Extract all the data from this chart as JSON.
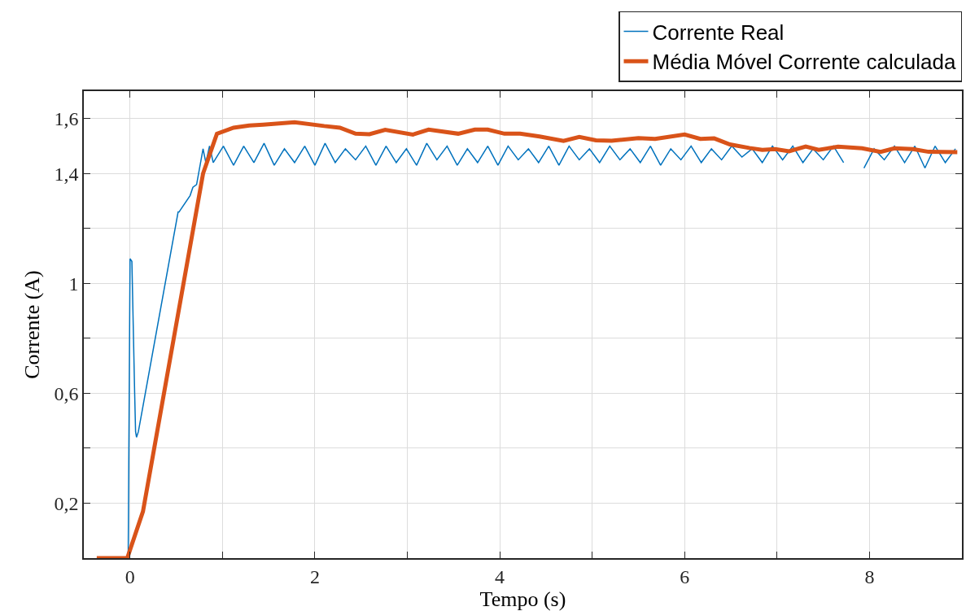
{
  "chart_data": {
    "type": "line",
    "xlabel": "Tempo (s)",
    "ylabel": "Corrente (A)",
    "xlim": [
      -0.5,
      9
    ],
    "ylim": [
      0,
      1.7
    ],
    "xticks": [
      0,
      {
        "value": 1,
        "label": null
      },
      2,
      {
        "value": 3,
        "label": null
      },
      4,
      {
        "value": 5,
        "label": null
      },
      6,
      {
        "value": 7,
        "label": null
      },
      8
    ],
    "yticks": [
      {
        "value": 0.2,
        "label": "0,2"
      },
      {
        "value": 0.4,
        "label": null
      },
      {
        "value": 0.6,
        "label": "0,6"
      },
      {
        "value": 0.8,
        "label": null
      },
      1,
      {
        "value": 1.2,
        "label": null
      },
      {
        "value": 1.4,
        "label": "1,4"
      },
      {
        "value": 1.6,
        "label": "1,6"
      }
    ],
    "grid": true,
    "legend": "top right",
    "marker": "none",
    "line_style": "solid",
    "series": [
      {
        "name": "Corrente Real",
        "color": "#0072bd",
        "x": [
          -0.36,
          -0.02,
          0.0,
          0.02,
          0.05,
          0.06,
          0.07,
          0.09,
          0.52,
          0.53,
          0.65,
          0.68,
          0.72,
          0.79,
          0.82,
          0.86,
          0.9,
          1.01,
          1.12,
          1.23,
          1.34,
          1.45,
          1.56,
          1.67,
          1.78,
          1.89,
          2.0,
          2.11,
          2.22,
          2.33,
          2.44,
          2.55,
          2.66,
          2.77,
          2.88,
          2.99,
          3.1,
          3.21,
          3.32,
          3.43,
          3.54,
          3.65,
          3.76,
          3.87,
          3.98,
          4.09,
          4.2,
          4.31,
          4.42,
          4.53,
          4.64,
          4.75,
          4.86,
          4.97,
          5.08,
          5.19,
          5.3,
          5.41,
          5.52,
          5.63,
          5.74,
          5.85,
          5.96,
          6.07,
          6.18,
          6.29,
          6.4,
          6.51,
          6.62,
          6.73,
          6.84,
          6.95,
          7.06,
          7.17,
          7.28,
          7.39,
          7.5,
          7.61,
          7.72,
          7.83,
          7.94,
          8.05,
          8.16,
          8.27,
          8.38,
          8.49,
          8.6,
          8.71,
          8.82,
          8.93
        ],
        "values": [
          0,
          0,
          1.09,
          1.08,
          0.6,
          0.46,
          0.44,
          0.46,
          1.26,
          1.26,
          1.32,
          1.35,
          1.36,
          1.49,
          1.44,
          1.5,
          1.44,
          1.5,
          1.43,
          1.5,
          1.44,
          1.51,
          1.43,
          1.49,
          1.44,
          1.5,
          1.43,
          1.51,
          1.44,
          1.49,
          1.45,
          1.5,
          1.43,
          1.5,
          1.44,
          1.49,
          1.43,
          1.51,
          1.45,
          1.5,
          1.43,
          1.49,
          1.44,
          1.5,
          1.43,
          1.5,
          1.45,
          1.49,
          1.44,
          1.5,
          1.43,
          1.5,
          1.45,
          1.49,
          1.44,
          1.5,
          1.45,
          1.49,
          1.44,
          1.5,
          1.43,
          1.49,
          1.45,
          1.5,
          1.44,
          1.49,
          1.45,
          1.5,
          1.46,
          1.49,
          1.44,
          1.5,
          1.45,
          1.5,
          1.44,
          1.49,
          1.45,
          1.5,
          1.44,
          null,
          1.42,
          1.49,
          1.45,
          1.5,
          1.44,
          1.5,
          1.42,
          1.5,
          1.44,
          1.49
        ]
      },
      {
        "name": "Média Móvel Corrente calculada",
        "color": "#d95319",
        "x": [
          -0.36,
          -0.03,
          0.14,
          0.79,
          0.94,
          1.12,
          1.29,
          1.44,
          1.78,
          2.1,
          2.27,
          2.44,
          2.59,
          2.76,
          3.06,
          3.23,
          3.55,
          3.73,
          3.87,
          4.05,
          4.22,
          4.43,
          4.69,
          4.86,
          5.04,
          5.21,
          5.5,
          5.68,
          6.0,
          6.17,
          6.32,
          6.49,
          6.7,
          6.84,
          6.98,
          7.13,
          7.31,
          7.45,
          7.66,
          7.92,
          8.12,
          8.27,
          8.47,
          8.64,
          8.95
        ],
        "values": [
          0,
          0,
          0.17,
          1.4,
          1.545,
          1.567,
          1.575,
          1.578,
          1.587,
          1.573,
          1.567,
          1.545,
          1.543,
          1.559,
          1.542,
          1.56,
          1.545,
          1.56,
          1.56,
          1.545,
          1.545,
          1.535,
          1.519,
          1.533,
          1.521,
          1.519,
          1.529,
          1.526,
          1.542,
          1.526,
          1.528,
          1.506,
          1.493,
          1.486,
          1.489,
          1.481,
          1.498,
          1.486,
          1.498,
          1.492,
          1.479,
          1.492,
          1.489,
          1.479,
          1.478
        ]
      }
    ]
  }
}
